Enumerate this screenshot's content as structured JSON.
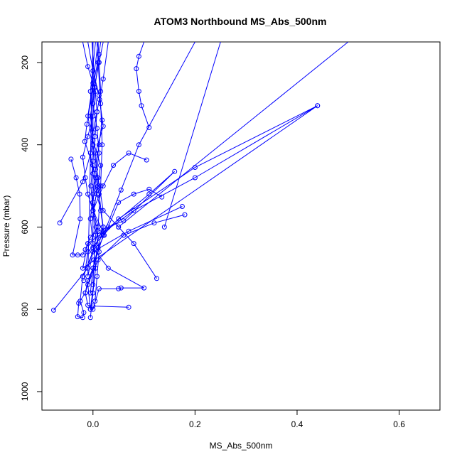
{
  "chart_data": {
    "type": "line",
    "title": "ATOM3 Northbound MS_Abs_500nm",
    "xlabel": "MS_Abs_500nm",
    "ylabel": "Pressure (mbar)",
    "xlim": [
      -0.1,
      0.68
    ],
    "ylim": [
      1045,
      150
    ],
    "y_reversed": true,
    "x_ticks": [
      "0.0",
      "0.2",
      "0.4",
      "0.6"
    ],
    "x_tick_values": [
      0.0,
      0.2,
      0.4,
      0.6
    ],
    "y_ticks": [
      "200",
      "400",
      "600",
      "800",
      "1000"
    ],
    "y_tick_values": [
      200,
      400,
      600,
      800,
      1000
    ],
    "grid": false,
    "marker": "open-circle",
    "series_color": "#0000ff",
    "series": [
      {
        "values": [
          [
            -0.077,
            802
          ],
          [
            -0.01,
            700
          ],
          [
            0.01,
            610
          ],
          [
            0.06,
            585
          ],
          [
            0.16,
            465
          ],
          [
            0.11,
            520
          ],
          [
            0.013,
            620
          ],
          [
            0.02,
            612
          ],
          [
            0.0,
            560
          ],
          [
            0.01,
            500
          ],
          [
            0.005,
            420
          ],
          [
            0.02,
            355
          ],
          [
            0.013,
            290
          ],
          [
            0.02,
            240
          ],
          [
            0.03,
            150
          ]
        ]
      },
      {
        "values": [
          [
            -0.065,
            590
          ],
          [
            -0.02,
            490
          ],
          [
            0.0,
            400
          ],
          [
            -0.005,
            270
          ],
          [
            0.005,
            150
          ]
        ]
      },
      {
        "values": [
          [
            -0.043,
            435
          ],
          [
            -0.033,
            480
          ],
          [
            -0.026,
            520
          ],
          [
            -0.025,
            580
          ],
          [
            -0.04,
            668
          ],
          [
            -0.03,
            668
          ],
          [
            -0.02,
            668
          ],
          [
            -0.015,
            655
          ],
          [
            -0.01,
            640
          ],
          [
            -0.005,
            625
          ],
          [
            0.01,
            600
          ],
          [
            0.0,
            560
          ],
          [
            -0.01,
            520
          ],
          [
            -0.015,
            480
          ],
          [
            -0.02,
            430
          ],
          [
            -0.01,
            380
          ],
          [
            0.0,
            330
          ],
          [
            0.005,
            270
          ],
          [
            -0.01,
            210
          ],
          [
            -0.02,
            150
          ]
        ]
      },
      {
        "values": [
          [
            0.44,
            305
          ],
          [
            0.2,
            480
          ],
          [
            0.08,
            560
          ],
          [
            -0.01,
            640
          ],
          [
            -0.02,
            700
          ],
          [
            0.44,
            305
          ],
          [
            0.2,
            455
          ],
          [
            0.05,
            580
          ],
          [
            -0.01,
            660
          ],
          [
            -0.018,
            730
          ]
        ]
      },
      {
        "values": [
          [
            0.175,
            550
          ],
          [
            0.07,
            610
          ],
          [
            0.0,
            660
          ],
          [
            -0.02,
            720
          ],
          [
            -0.025,
            780
          ],
          [
            -0.018,
            808
          ],
          [
            -0.02,
            820
          ],
          [
            -0.03,
            818
          ],
          [
            -0.028,
            785
          ],
          [
            -0.015,
            760
          ],
          [
            -0.01,
            730
          ],
          [
            0.0,
            700
          ],
          [
            0.01,
            650
          ],
          [
            0.02,
            600
          ]
        ]
      },
      {
        "values": [
          [
            0.18,
            570
          ],
          [
            0.12,
            590
          ],
          [
            0.06,
            620
          ],
          [
            0.01,
            680
          ],
          [
            -0.01,
            740
          ],
          [
            -0.005,
            800
          ],
          [
            0.0,
            800
          ],
          [
            0.012,
            750
          ],
          [
            0.05,
            750
          ],
          [
            0.055,
            748
          ],
          [
            0.1,
            748
          ],
          [
            0.03,
            700
          ],
          [
            0.0,
            650
          ]
        ]
      },
      {
        "values": [
          [
            0.125,
            725
          ],
          [
            0.08,
            640
          ],
          [
            0.05,
            600
          ],
          [
            0.02,
            560
          ],
          [
            0.01,
            480
          ],
          [
            0.0,
            400
          ],
          [
            -0.01,
            330
          ],
          [
            0.0,
            250
          ],
          [
            0.01,
            150
          ]
        ]
      },
      {
        "values": [
          [
            0.07,
            795
          ],
          [
            0.0,
            792
          ],
          [
            -0.01,
            790
          ],
          [
            -0.015,
            760
          ],
          [
            0.0,
            700
          ],
          [
            0.02,
            620
          ],
          [
            0.055,
            510
          ],
          [
            0.09,
            400
          ],
          [
            0.2,
            150
          ]
        ]
      },
      {
        "values": [
          [
            0.11,
            358
          ],
          [
            0.095,
            305
          ],
          [
            0.09,
            270
          ],
          [
            0.085,
            215
          ],
          [
            0.09,
            185
          ],
          [
            0.1,
            150
          ]
        ]
      },
      {
        "values": [
          [
            0.105,
            437
          ],
          [
            0.07,
            420
          ],
          [
            0.04,
            450
          ],
          [
            0.02,
            500
          ],
          [
            0.0,
            560
          ],
          [
            0.0,
            150
          ]
        ]
      },
      {
        "values": [
          [
            0.135,
            527
          ],
          [
            0.11,
            508
          ],
          [
            0.08,
            520
          ],
          [
            0.05,
            540
          ],
          [
            0.03,
            600
          ],
          [
            0.01,
            650
          ],
          [
            0.0,
            700
          ],
          [
            -0.005,
            760
          ]
        ]
      },
      {
        "values": [
          [
            0.14,
            600
          ],
          [
            0.25,
            150
          ]
        ]
      },
      {
        "values": [
          [
            0.012,
            180
          ],
          [
            0.0,
            260
          ],
          [
            -0.012,
            350
          ],
          [
            -0.016,
            392
          ],
          [
            0.0,
            450
          ],
          [
            0.012,
            520
          ],
          [
            0.02,
            600
          ],
          [
            0.0,
            660
          ],
          [
            -0.01,
            720
          ],
          [
            0.0,
            150
          ]
        ]
      },
      {
        "values": [
          [
            0.05,
            600
          ],
          [
            0.5,
            150
          ]
        ]
      },
      {
        "values": [
          [
            -0.005,
            800
          ],
          [
            0.005,
            700
          ],
          [
            0.01,
            600
          ],
          [
            0.015,
            500
          ],
          [
            0.018,
            400
          ],
          [
            0.015,
            300
          ],
          [
            0.01,
            200
          ],
          [
            0.008,
            150
          ]
        ]
      },
      {
        "values": [
          [
            -0.005,
            820
          ],
          [
            0.0,
            760
          ],
          [
            0.005,
            700
          ],
          [
            0.0,
            640
          ],
          [
            -0.005,
            580
          ],
          [
            0.0,
            520
          ],
          [
            0.005,
            460
          ],
          [
            0.012,
            400
          ],
          [
            0.018,
            340
          ],
          [
            0.012,
            280
          ],
          [
            0.0,
            220
          ],
          [
            -0.01,
            150
          ]
        ]
      },
      {
        "values": [
          [
            0.0,
            650
          ],
          [
            0.0,
            570
          ],
          [
            0.008,
            510
          ],
          [
            0.015,
            450
          ],
          [
            0.0,
            390
          ],
          [
            -0.005,
            330
          ],
          [
            0.003,
            260
          ],
          [
            0.012,
            200
          ],
          [
            0.02,
            150
          ]
        ]
      },
      {
        "values": [
          [
            0.0,
            740
          ],
          [
            0.002,
            680
          ],
          [
            0.005,
            620
          ],
          [
            0.0,
            560
          ],
          [
            -0.004,
            500
          ],
          [
            0.0,
            440
          ],
          [
            0.004,
            380
          ],
          [
            0.008,
            320
          ],
          [
            0.004,
            260
          ],
          [
            -0.002,
            150
          ]
        ]
      },
      {
        "values": [
          [
            0.004,
            780
          ],
          [
            0.008,
            720
          ],
          [
            0.012,
            660
          ],
          [
            0.006,
            600
          ],
          [
            0.0,
            540
          ],
          [
            0.006,
            480
          ],
          [
            0.012,
            420
          ],
          [
            0.008,
            360
          ],
          [
            0.0,
            300
          ],
          [
            0.015,
            150
          ]
        ]
      },
      {
        "values": [
          [
            0.022,
            620
          ],
          [
            0.015,
            560
          ],
          [
            0.008,
            520
          ],
          [
            0.0,
            470
          ],
          [
            -0.005,
            420
          ],
          [
            0.0,
            370
          ],
          [
            0.008,
            320
          ],
          [
            0.015,
            270
          ],
          [
            0.01,
            150
          ]
        ]
      }
    ]
  }
}
